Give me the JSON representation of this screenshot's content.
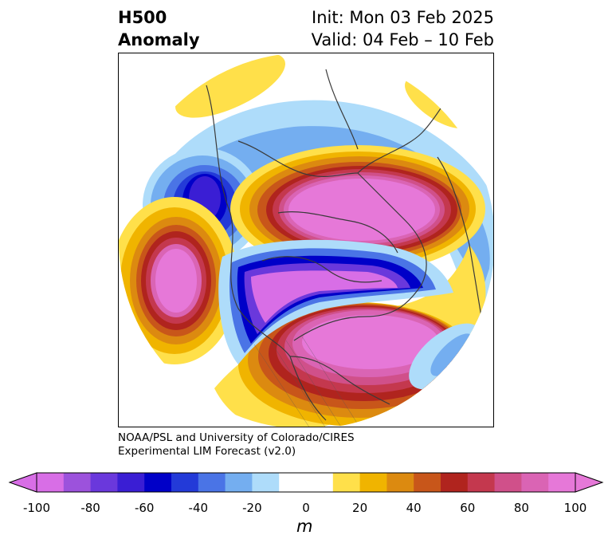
{
  "title": {
    "left_line1": "H500",
    "left_line2": "Anomaly",
    "right_line1": "Init: Mon 03 Feb 2025",
    "right_line2": "Valid: 04 Feb – 10 Feb"
  },
  "credit": {
    "line1": "NOAA/PSL and University of Colorado/CIRES",
    "line2": "Experimental LIM Forecast (v2.0)"
  },
  "colorbar": {
    "unit": "m",
    "ticks": [
      "-100",
      "-80",
      "-60",
      "-40",
      "-20",
      "0",
      "20",
      "40",
      "60",
      "80",
      "100"
    ],
    "colors": [
      "#d86ee6",
      "#9c52dc",
      "#6a38dc",
      "#3a1ed4",
      "#0000c8",
      "#233ad8",
      "#4a74e6",
      "#74aef0",
      "#aedcfa",
      "#ffffff",
      "#ffffff",
      "#ffe04a",
      "#f0b400",
      "#dc8a10",
      "#c8561a",
      "#b0241e",
      "#c4384e",
      "#d0508a",
      "#da64b4",
      "#e678d8"
    ]
  },
  "palette": {
    "pos1": "#ffe04a",
    "pos2": "#f0b400",
    "pos3": "#dc8a10",
    "pos4": "#c8561a",
    "pos5": "#b0241e",
    "pos6": "#c4384e",
    "pos7": "#d0508a",
    "pos8": "#da64b4",
    "pos9": "#e678d8",
    "neg1": "#aedcfa",
    "neg2": "#74aef0",
    "neg3": "#4a74e6",
    "neg4": "#233ad8",
    "neg5": "#0000c8",
    "neg6": "#3a1ed4",
    "neg7": "#6a38dc",
    "neg8": "#9c52dc",
    "neg9": "#d86ee6"
  }
}
